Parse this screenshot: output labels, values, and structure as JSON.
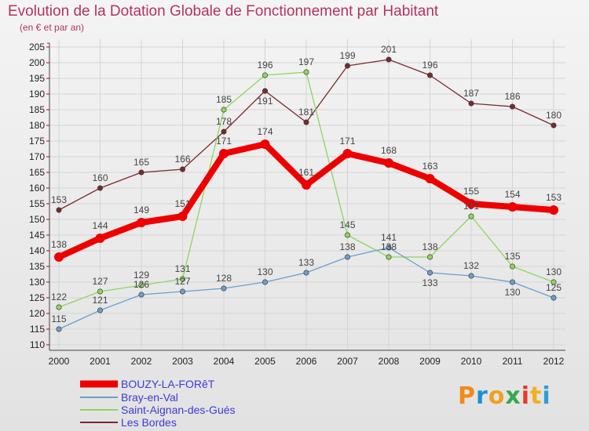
{
  "title": "Evolution de la Dotation Globale de Fonctionnement par Habitant",
  "subtitle": "(en € et par an)",
  "logo": {
    "text": "Proxiti",
    "colors": [
      "#f08a1a",
      "#1f8fd1",
      "#f0a020",
      "#37a84a",
      "#e83a2a",
      "#f0b020",
      "#2f9cd8"
    ]
  },
  "chart_data": {
    "type": "line",
    "title": "Evolution de la Dotation Globale de Fonctionnement par Habitant",
    "subtitle": "(en € et par an)",
    "x": [
      "2000",
      "2001",
      "2002",
      "2003",
      "2004",
      "2005",
      "2006",
      "2007",
      "2008",
      "2009",
      "2010",
      "2011",
      "2012"
    ],
    "ylim": [
      110,
      205
    ],
    "yticks": [
      110,
      115,
      120,
      125,
      130,
      135,
      140,
      145,
      150,
      155,
      160,
      165,
      170,
      175,
      180,
      185,
      190,
      195,
      200,
      205
    ],
    "grid": true,
    "legend": "bottom-left",
    "series": [
      {
        "name": "BOUZY-LA-FORêT",
        "color": "#ee0000",
        "values": [
          138,
          144,
          149,
          151,
          171,
          174,
          161,
          171,
          168,
          163,
          155,
          154,
          153
        ]
      },
      {
        "name": "Bray-en-Val",
        "color": "#6a9fce",
        "values": [
          115,
          121,
          126,
          127,
          128,
          130,
          133,
          138,
          141,
          133,
          132,
          130,
          125
        ]
      },
      {
        "name": "Saint-Aignan-des-Gués",
        "color": "#8ed65c",
        "values": [
          122,
          127,
          129,
          131,
          185,
          196,
          197,
          145,
          138,
          138,
          151,
          135,
          130
        ]
      },
      {
        "name": "Les Bordes",
        "color": "#7a2a2a",
        "values": [
          153,
          160,
          165,
          166,
          178,
          191,
          181,
          199,
          201,
          196,
          187,
          186,
          180
        ]
      }
    ]
  }
}
